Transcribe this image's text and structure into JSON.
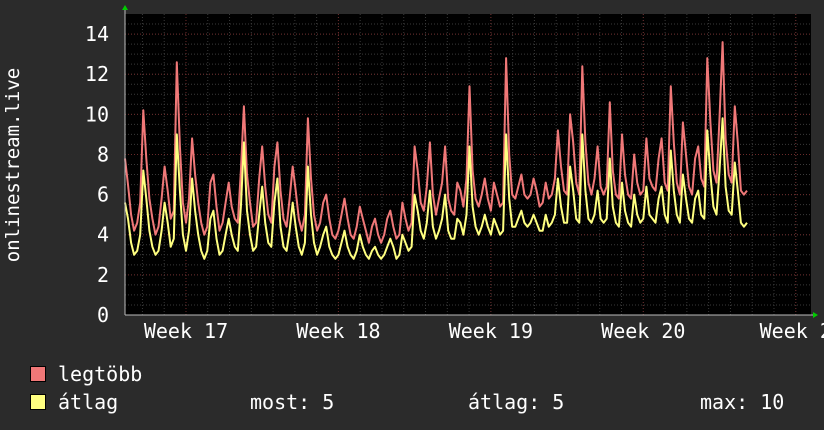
{
  "chart_data": {
    "type": "line",
    "ylabel": "onlinestream.live",
    "ylim": [
      0,
      15
    ],
    "y_ticks": [
      0,
      2,
      4,
      6,
      8,
      10,
      12,
      14
    ],
    "xlim": [
      16.6,
      21.1
    ],
    "x_ticks": [
      {
        "value": 17,
        "label": "Week 17"
      },
      {
        "value": 18,
        "label": "Week 18"
      },
      {
        "value": 19,
        "label": "Week 19"
      },
      {
        "value": 20,
        "label": "Week 20"
      },
      {
        "value": 21,
        "label": "Week 2"
      }
    ],
    "grid": true,
    "series": [
      {
        "name": "legtöbb",
        "color": "#f07878",
        "x_start": 16.6,
        "x_step": 0.02,
        "values": [
          7.8,
          6.5,
          5.0,
          4.2,
          4.6,
          5.6,
          10.2,
          7.8,
          5.8,
          4.8,
          4.0,
          4.4,
          5.8,
          7.4,
          6.2,
          4.8,
          5.2,
          12.6,
          8.4,
          5.6,
          4.6,
          5.8,
          8.8,
          7.0,
          5.6,
          4.6,
          4.0,
          4.4,
          6.6,
          7.0,
          5.4,
          4.2,
          4.6,
          5.6,
          6.6,
          5.4,
          4.8,
          4.6,
          7.2,
          10.4,
          7.0,
          5.6,
          4.4,
          4.6,
          6.8,
          8.4,
          6.4,
          5.0,
          4.6,
          7.4,
          8.6,
          6.2,
          4.8,
          4.4,
          5.8,
          7.4,
          6.2,
          4.8,
          4.2,
          5.0,
          9.8,
          6.8,
          5.0,
          4.2,
          4.6,
          5.6,
          6.0,
          4.8,
          4.0,
          3.8,
          4.2,
          5.0,
          5.8,
          4.8,
          4.0,
          3.8,
          4.4,
          5.4,
          4.8,
          4.2,
          3.6,
          4.4,
          4.8,
          4.0,
          3.6,
          4.0,
          4.8,
          5.2,
          4.4,
          3.8,
          4.0,
          5.6,
          4.8,
          4.2,
          4.6,
          8.4,
          7.2,
          5.6,
          5.2,
          6.4,
          8.6,
          6.0,
          5.0,
          5.8,
          6.6,
          8.4,
          5.8,
          5.2,
          5.0,
          6.6,
          6.2,
          5.4,
          6.8,
          11.4,
          7.2,
          5.8,
          5.4,
          6.0,
          6.8,
          5.8,
          5.2,
          6.6,
          6.0,
          5.4,
          5.6,
          12.8,
          8.0,
          6.0,
          5.8,
          6.4,
          7.0,
          6.0,
          5.8,
          6.0,
          6.8,
          6.2,
          5.4,
          5.6,
          6.6,
          5.8,
          6.0,
          6.8,
          9.2,
          7.4,
          6.2,
          6.0,
          10.0,
          8.6,
          6.6,
          6.0,
          12.4,
          8.6,
          6.6,
          6.0,
          6.8,
          8.4,
          6.4,
          6.0,
          6.4,
          10.6,
          7.2,
          6.0,
          5.8,
          9.0,
          7.0,
          6.0,
          5.8,
          8.0,
          6.6,
          6.0,
          6.2,
          8.8,
          6.8,
          6.4,
          6.2,
          7.8,
          8.8,
          6.6,
          6.2,
          11.4,
          8.6,
          6.6,
          6.0,
          9.6,
          8.0,
          6.4,
          6.0,
          7.8,
          8.4,
          6.8,
          6.4,
          12.8,
          9.6,
          7.2,
          6.6,
          9.8,
          13.6,
          8.8,
          7.0,
          6.6,
          10.4,
          8.6,
          6.2,
          6.0,
          6.2
        ]
      },
      {
        "name": "átlag",
        "color": "#ffff80",
        "x_start": 16.6,
        "x_step": 0.02,
        "values": [
          5.6,
          4.8,
          3.6,
          3.0,
          3.2,
          4.0,
          7.2,
          5.8,
          4.2,
          3.4,
          3.0,
          3.2,
          4.2,
          5.6,
          4.6,
          3.4,
          3.8,
          9.0,
          6.2,
          4.0,
          3.2,
          4.2,
          6.8,
          5.2,
          4.0,
          3.2,
          2.8,
          3.2,
          4.8,
          5.2,
          3.8,
          3.0,
          3.2,
          4.0,
          4.8,
          4.0,
          3.4,
          3.2,
          5.4,
          8.6,
          5.2,
          4.0,
          3.2,
          3.4,
          5.0,
          6.4,
          4.6,
          3.6,
          3.4,
          5.6,
          6.8,
          4.4,
          3.4,
          3.2,
          4.2,
          5.6,
          4.4,
          3.4,
          3.0,
          3.6,
          7.4,
          5.0,
          3.6,
          3.0,
          3.4,
          4.0,
          4.4,
          3.4,
          3.0,
          2.8,
          3.0,
          3.6,
          4.2,
          3.4,
          3.0,
          2.8,
          3.2,
          4.0,
          3.4,
          3.0,
          2.8,
          3.2,
          3.4,
          3.0,
          2.8,
          3.0,
          3.4,
          3.8,
          3.4,
          2.8,
          3.0,
          4.0,
          3.6,
          3.2,
          3.4,
          6.0,
          5.2,
          4.2,
          3.8,
          4.6,
          6.2,
          4.4,
          3.8,
          4.2,
          4.8,
          6.0,
          4.2,
          3.8,
          3.8,
          4.8,
          4.6,
          4.0,
          5.0,
          8.4,
          5.4,
          4.4,
          4.0,
          4.4,
          5.0,
          4.4,
          4.0,
          4.8,
          4.4,
          4.0,
          4.2,
          9.0,
          5.8,
          4.4,
          4.4,
          4.8,
          5.2,
          4.6,
          4.4,
          4.6,
          5.0,
          4.6,
          4.2,
          4.2,
          5.0,
          4.4,
          4.6,
          5.0,
          6.8,
          5.4,
          4.6,
          4.6,
          7.4,
          6.2,
          4.8,
          4.6,
          9.0,
          6.2,
          4.8,
          4.6,
          5.0,
          6.2,
          4.8,
          4.6,
          4.8,
          7.8,
          5.4,
          4.6,
          4.4,
          6.6,
          5.2,
          4.6,
          4.4,
          6.0,
          5.0,
          4.6,
          4.8,
          6.4,
          5.0,
          4.8,
          4.6,
          5.8,
          6.4,
          5.0,
          4.6,
          8.2,
          6.2,
          5.0,
          4.6,
          7.0,
          5.8,
          4.8,
          4.6,
          5.8,
          6.2,
          5.0,
          4.8,
          9.2,
          7.0,
          5.4,
          5.0,
          7.2,
          9.8,
          6.4,
          5.2,
          5.0,
          7.6,
          6.2,
          4.6,
          4.4,
          4.6
        ]
      }
    ]
  },
  "legend": [
    {
      "label": "legtöbb",
      "color": "#f07878"
    },
    {
      "label": "átlag",
      "color": "#ffff80"
    }
  ],
  "stats": {
    "now": "most: 5",
    "avg": "átlag: 5",
    "max": "max: 10"
  },
  "colors": {
    "background": "#2b2b2b",
    "canvas": "#000000",
    "grid_minor": "#3a3a3a",
    "grid_major": "#6a2a2a",
    "axis_arrow": "#00cc00"
  }
}
